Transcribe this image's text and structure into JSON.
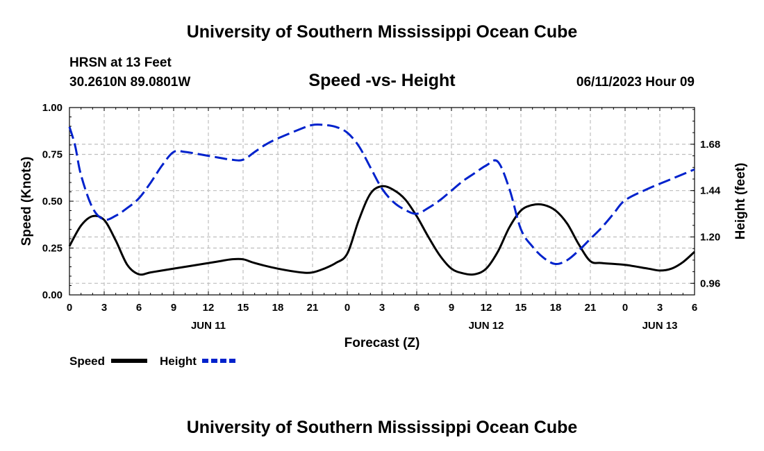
{
  "header": {
    "title": "University of Southern Mississippi Ocean Cube",
    "station": "HRSN at 13 Feet",
    "coords": "30.2610N  89.0801W",
    "subtitle": "Speed -vs- Height",
    "datetime": "06/11/2023 Hour 09",
    "footer_title": "University of Southern Mississippi Ocean Cube"
  },
  "chart_data": {
    "type": "line",
    "title": "Speed -vs- Height",
    "xlabel": "Forecast (Z)",
    "ylabel_left": "Speed (Knots)",
    "ylabel_right": "Height (feet)",
    "x_range_hours": [
      0,
      54
    ],
    "x_ticks": [
      {
        "h": 0,
        "label": "0"
      },
      {
        "h": 3,
        "label": "3"
      },
      {
        "h": 6,
        "label": "6"
      },
      {
        "h": 9,
        "label": "9"
      },
      {
        "h": 12,
        "label": "12"
      },
      {
        "h": 15,
        "label": "15"
      },
      {
        "h": 18,
        "label": "18"
      },
      {
        "h": 21,
        "label": "21"
      },
      {
        "h": 24,
        "label": "0"
      },
      {
        "h": 27,
        "label": "3"
      },
      {
        "h": 30,
        "label": "6"
      },
      {
        "h": 33,
        "label": "9"
      },
      {
        "h": 36,
        "label": "12"
      },
      {
        "h": 39,
        "label": "15"
      },
      {
        "h": 42,
        "label": "18"
      },
      {
        "h": 45,
        "label": "21"
      },
      {
        "h": 48,
        "label": "0"
      },
      {
        "h": 51,
        "label": "3"
      },
      {
        "h": 54,
        "label": "6"
      }
    ],
    "date_labels": [
      {
        "h": 12,
        "label": "JUN 11"
      },
      {
        "h": 36,
        "label": "JUN 12"
      },
      {
        "h": 51,
        "label": "JUN 13"
      }
    ],
    "y_left": {
      "range": [
        0,
        1
      ],
      "ticks": [
        "0.00",
        "0.25",
        "0.50",
        "0.75",
        "1.00"
      ]
    },
    "y_right": {
      "range": [
        0.9,
        1.87
      ],
      "ticks": [
        "0.96",
        "1.20",
        "1.44",
        "1.68"
      ]
    },
    "grid": true,
    "series": [
      {
        "name": "Speed",
        "axis": "left",
        "color": "#000000",
        "style": "solid",
        "x": [
          0,
          1,
          2,
          3,
          4,
          5,
          6,
          7,
          8,
          10,
          12,
          13,
          14,
          15,
          16,
          18,
          20,
          21,
          22,
          23,
          24,
          25,
          26,
          27,
          28,
          29,
          30,
          31,
          32,
          33,
          34,
          35,
          36,
          37,
          38,
          39,
          40,
          41,
          42,
          43,
          44,
          45,
          46,
          48,
          50,
          51,
          52,
          53,
          54
        ],
        "values": [
          0.26,
          0.37,
          0.42,
          0.4,
          0.29,
          0.16,
          0.11,
          0.12,
          0.13,
          0.15,
          0.17,
          0.18,
          0.19,
          0.19,
          0.17,
          0.14,
          0.12,
          0.12,
          0.14,
          0.17,
          0.22,
          0.4,
          0.54,
          0.58,
          0.56,
          0.51,
          0.42,
          0.31,
          0.21,
          0.14,
          0.115,
          0.11,
          0.14,
          0.23,
          0.36,
          0.45,
          0.48,
          0.48,
          0.45,
          0.38,
          0.27,
          0.18,
          0.17,
          0.16,
          0.14,
          0.13,
          0.14,
          0.175,
          0.23
        ]
      },
      {
        "name": "Height",
        "axis": "right",
        "color": "#0022cc",
        "style": "dashed",
        "x": [
          0,
          0.5,
          1,
          2,
          3,
          4,
          5,
          6,
          7,
          8,
          9,
          10,
          12,
          14,
          15,
          16,
          17,
          18,
          20,
          21,
          22,
          23,
          24,
          25,
          26,
          27,
          28,
          29,
          30,
          31,
          32,
          33,
          34,
          35,
          36,
          37,
          38,
          39,
          40,
          41,
          42,
          43,
          44,
          45,
          46,
          47,
          48,
          50,
          52,
          54
        ],
        "values": [
          1.77,
          1.67,
          1.52,
          1.35,
          1.29,
          1.31,
          1.35,
          1.4,
          1.48,
          1.57,
          1.64,
          1.64,
          1.62,
          1.6,
          1.6,
          1.64,
          1.68,
          1.71,
          1.76,
          1.78,
          1.78,
          1.77,
          1.74,
          1.67,
          1.56,
          1.45,
          1.38,
          1.34,
          1.32,
          1.35,
          1.39,
          1.44,
          1.49,
          1.53,
          1.57,
          1.59,
          1.45,
          1.24,
          1.15,
          1.09,
          1.06,
          1.08,
          1.13,
          1.19,
          1.25,
          1.32,
          1.39,
          1.45,
          1.5,
          1.55
        ]
      }
    ],
    "legend": [
      {
        "label": "Speed",
        "color": "#000000",
        "style": "solid"
      },
      {
        "label": "Height",
        "color": "#0022cc",
        "style": "dashed"
      }
    ]
  }
}
